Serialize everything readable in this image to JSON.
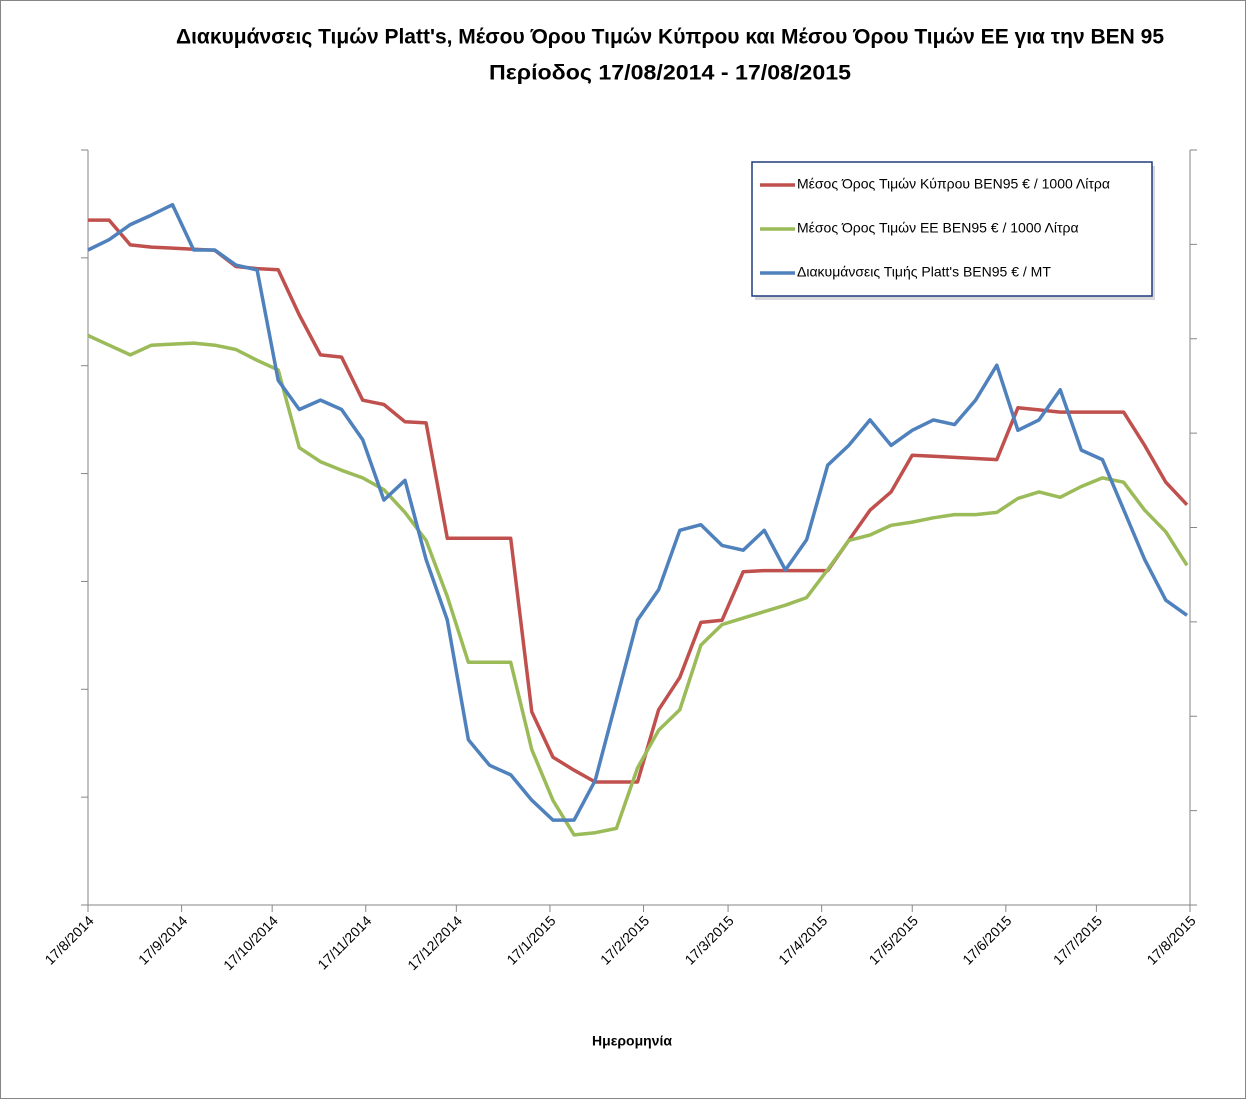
{
  "chart_data": {
    "type": "line",
    "title": "Διακυμάνσεις Τιμών Platt's, Μέσου Όρου Τιμών Κύπρου και Μέσου Όρου Τιμών ΕΕ για την ΒΕΝ 95",
    "subtitle": "Περίοδος 17/08/2014 - 17/08/2015",
    "xlabel": "Ημερομηνία",
    "x": [
      "2014-08-17",
      "2014-08-24",
      "2014-08-31",
      "2014-09-07",
      "2014-09-14",
      "2014-09-21",
      "2014-09-28",
      "2014-10-05",
      "2014-10-12",
      "2014-10-19",
      "2014-10-26",
      "2014-11-02",
      "2014-11-09",
      "2014-11-16",
      "2014-11-23",
      "2014-11-30",
      "2014-12-07",
      "2014-12-14",
      "2014-12-21",
      "2014-12-28",
      "2015-01-04",
      "2015-01-11",
      "2015-01-18",
      "2015-01-25",
      "2015-02-01",
      "2015-02-08",
      "2015-02-15",
      "2015-02-22",
      "2015-03-01",
      "2015-03-08",
      "2015-03-15",
      "2015-03-22",
      "2015-03-29",
      "2015-04-05",
      "2015-04-12",
      "2015-04-19",
      "2015-04-26",
      "2015-05-03",
      "2015-05-10",
      "2015-05-17",
      "2015-05-24",
      "2015-05-31",
      "2015-06-07",
      "2015-06-14",
      "2015-06-21",
      "2015-06-28",
      "2015-07-05",
      "2015-07-12",
      "2015-07-19",
      "2015-07-26",
      "2015-08-02",
      "2015-08-09",
      "2015-08-16"
    ],
    "xlim": [
      "2014-08-17",
      "2015-08-17"
    ],
    "xticks": [
      {
        "value": "2014-08-17",
        "label": "17/8/2014"
      },
      {
        "value": "2014-09-17",
        "label": "17/9/2014"
      },
      {
        "value": "2014-10-17",
        "label": "17/10/2014"
      },
      {
        "value": "2014-11-17",
        "label": "17/11/2014"
      },
      {
        "value": "2014-12-17",
        "label": "17/12/2014"
      },
      {
        "value": "2015-01-17",
        "label": "17/1/2015"
      },
      {
        "value": "2015-02-17",
        "label": "17/2/2015"
      },
      {
        "value": "2015-03-17",
        "label": "17/3/2015"
      },
      {
        "value": "2015-04-17",
        "label": "17/4/2015"
      },
      {
        "value": "2015-05-17",
        "label": "17/5/2015"
      },
      {
        "value": "2015-06-17",
        "label": "17/6/2015"
      },
      {
        "value": "2015-07-17",
        "label": "17/7/2015"
      },
      {
        "value": "2015-08-17",
        "label": "17/8/2015"
      }
    ],
    "ylim": [
      0,
      7
    ],
    "yticks": [
      0,
      1,
      2,
      3,
      4,
      5,
      6,
      7
    ],
    "y2lim": [
      0,
      8
    ],
    "y2ticks": [
      0,
      1,
      2,
      3,
      4,
      5,
      6,
      7,
      8
    ],
    "legend": "upper right",
    "series": [
      {
        "name": "Μέσος Όρος Τιμών Κύπρου ΒΕΝ95 € / 1000 Λίτρα",
        "color": "#c0504d",
        "values": [
          6.35,
          6.35,
          6.12,
          6.1,
          6.09,
          6.08,
          6.07,
          5.92,
          5.9,
          5.89,
          5.47,
          5.1,
          5.08,
          4.68,
          4.64,
          4.48,
          4.47,
          3.4,
          3.4,
          3.4,
          3.4,
          1.79,
          1.37,
          1.25,
          1.14,
          1.14,
          1.14,
          1.81,
          2.11,
          2.62,
          2.64,
          3.09,
          3.1,
          3.1,
          3.1,
          3.1,
          3.38,
          3.66,
          3.83,
          4.17,
          4.16,
          4.15,
          4.14,
          4.13,
          4.61,
          4.59,
          4.57,
          4.57,
          4.57,
          4.57,
          4.26,
          3.92,
          3.71
        ]
      },
      {
        "name": "Μέσος Όρος Τιμών ΕΕ ΒΕΝ95 € / 1000 Λίτρα",
        "color": "#9bbb59",
        "values": [
          5.28,
          5.19,
          5.1,
          5.19,
          5.2,
          5.21,
          5.19,
          5.15,
          5.05,
          4.96,
          4.24,
          4.11,
          4.03,
          3.96,
          3.85,
          3.64,
          3.38,
          2.86,
          2.25,
          2.25,
          2.25,
          1.44,
          0.97,
          0.65,
          0.67,
          0.71,
          1.27,
          1.62,
          1.81,
          2.41,
          2.6,
          2.66,
          2.72,
          2.78,
          2.85,
          3.11,
          3.38,
          3.43,
          3.52,
          3.55,
          3.59,
          3.62,
          3.62,
          3.64,
          3.77,
          3.83,
          3.78,
          3.88,
          3.96,
          3.92,
          3.66,
          3.46,
          3.15
        ]
      },
      {
        "name": "Διακυμάνσεις Τιμής Platt's ΒΕΝ95 € / ΜΤ",
        "color": "#4f81bd",
        "axis": "y2",
        "values": [
          6.94,
          7.05,
          7.21,
          7.31,
          7.42,
          6.94,
          6.94,
          6.78,
          6.73,
          5.56,
          5.25,
          5.35,
          5.25,
          4.93,
          4.29,
          4.5,
          3.66,
          3.02,
          1.75,
          1.48,
          1.38,
          1.11,
          0.9,
          0.9,
          1.32,
          2.17,
          3.02,
          3.34,
          3.97,
          4.03,
          3.81,
          3.76,
          3.97,
          3.55,
          3.87,
          4.66,
          4.87,
          5.14,
          4.87,
          5.03,
          5.14,
          5.09,
          5.35,
          5.72,
          5.03,
          5.14,
          5.46,
          4.82,
          4.72,
          4.19,
          3.66,
          3.23,
          3.07
        ]
      }
    ]
  }
}
